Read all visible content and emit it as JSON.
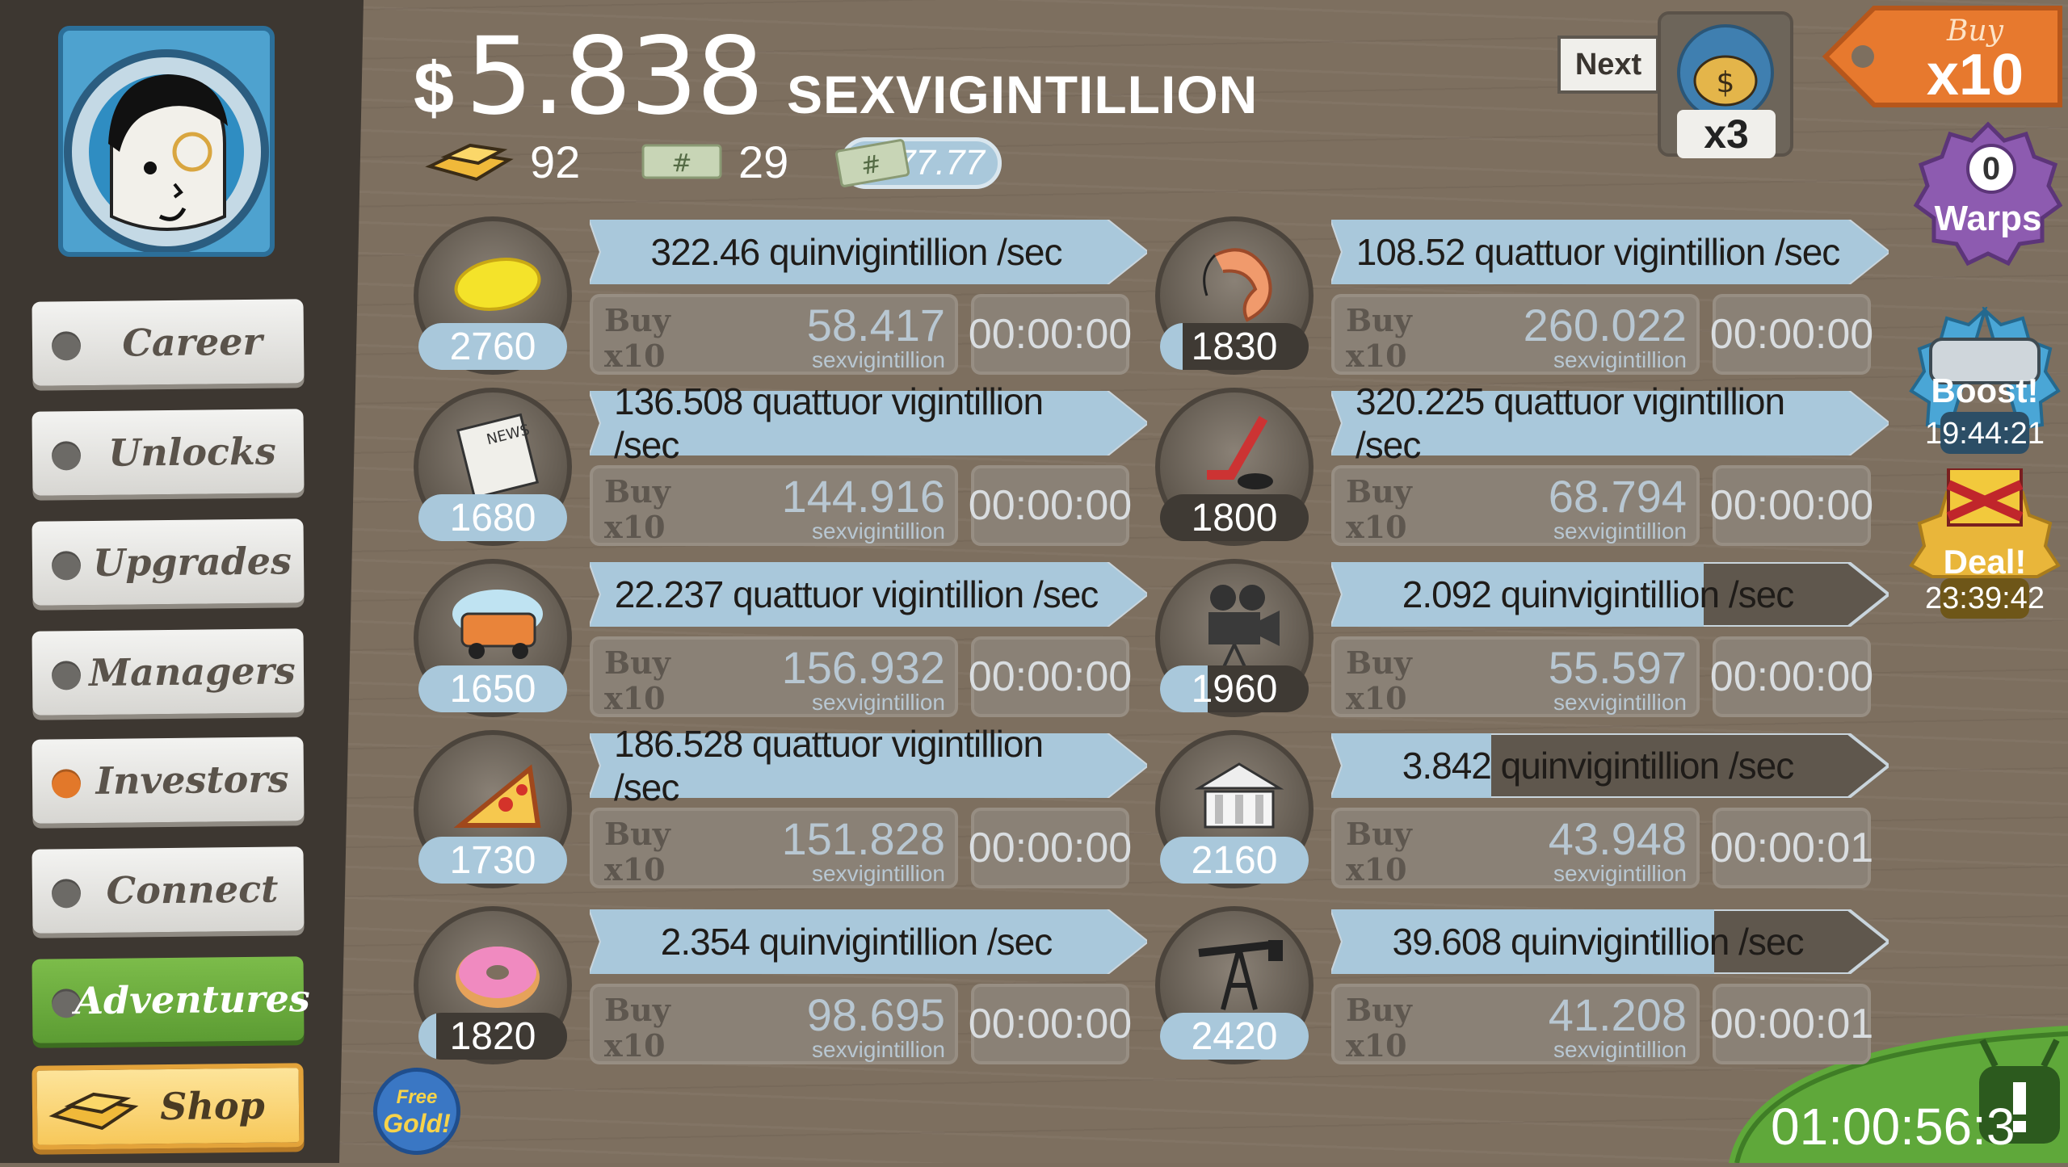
{
  "header": {
    "currency_symbol": "$",
    "amount": "5.838",
    "unit": "SEXVIGINTILLION",
    "gold_count": "92",
    "megabucks_count": "29",
    "angel_multiplier": "x77.77"
  },
  "next": {
    "label": "Next",
    "multiplier": "x3"
  },
  "buy_mode": {
    "line1": "Buy",
    "line2": "x10"
  },
  "warps": {
    "count": "0",
    "label": "Warps"
  },
  "boost": {
    "label": "Boost!",
    "timer": "19:44:21"
  },
  "deal": {
    "label": "Deal!",
    "timer": "23:39:42"
  },
  "tv_timer": "01:00:56:3",
  "free_gold": {
    "line1": "Free",
    "line2": "Gold!"
  },
  "sidebar": {
    "items": [
      {
        "label": "Career"
      },
      {
        "label": "Unlocks"
      },
      {
        "label": "Upgrades"
      },
      {
        "label": "Managers"
      },
      {
        "label": "Investors"
      },
      {
        "label": "Connect"
      },
      {
        "label": "Adventures"
      },
      {
        "label": "Shop"
      }
    ]
  },
  "buy_labels": {
    "line1": "Buy",
    "line2": "x10"
  },
  "businesses": [
    {
      "icon": "lemon-icon",
      "owned": "2760",
      "progress": 1.0,
      "revenue": "322.46 quinvigintillion /sec",
      "cost": "58.417",
      "cost_unit": "sexvigintillion",
      "timer": "00:00:00"
    },
    {
      "icon": "shrimp-icon",
      "owned": "1830",
      "progress": 0.15,
      "revenue": "108.52 quattuor vigintillion /sec",
      "cost": "260.022",
      "cost_unit": "sexvigintillion",
      "timer": "00:00:00"
    },
    {
      "icon": "newspaper-icon",
      "owned": "1680",
      "progress": 1.0,
      "revenue": "136.508 quattuor vigintillion /sec",
      "cost": "144.916",
      "cost_unit": "sexvigintillion",
      "timer": "00:00:00"
    },
    {
      "icon": "hockey-icon",
      "owned": "1800",
      "progress": 0.0,
      "revenue": "320.225 quattuor vigintillion /sec",
      "cost": "68.794",
      "cost_unit": "sexvigintillion",
      "timer": "00:00:00"
    },
    {
      "icon": "car-icon",
      "owned": "1650",
      "progress": 1.0,
      "revenue": "22.237 quattuor vigintillion /sec",
      "cost": "156.932",
      "cost_unit": "sexvigintillion",
      "timer": "00:00:00"
    },
    {
      "icon": "movie-camera-icon",
      "owned": "1960",
      "progress": 0.32,
      "revenue": "2.092 quinvigintillion /sec",
      "cost": "55.597",
      "cost_unit": "sexvigintillion",
      "timer": "00:00:00",
      "rev_fill": 0.72
    },
    {
      "icon": "pizza-icon",
      "owned": "1730",
      "progress": 1.0,
      "revenue": "186.528 quattuor vigintillion /sec",
      "cost": "151.828",
      "cost_unit": "sexvigintillion",
      "timer": "00:00:00"
    },
    {
      "icon": "bank-icon",
      "owned": "2160",
      "progress": 1.0,
      "revenue": "3.842 quinvigintillion /sec",
      "cost": "43.948",
      "cost_unit": "sexvigintillion",
      "timer": "00:00:01",
      "rev_fill": 0.31
    },
    {
      "icon": "donut-icon",
      "owned": "1820",
      "progress": 0.12,
      "revenue": "2.354 quinvigintillion /sec",
      "cost": "98.695",
      "cost_unit": "sexvigintillion",
      "timer": "00:00:00"
    },
    {
      "icon": "oil-rig-icon",
      "owned": "2420",
      "progress": 1.0,
      "revenue": "39.608 quinvigintillion /sec",
      "cost": "41.208",
      "cost_unit": "sexvigintillion",
      "timer": "00:00:01",
      "rev_fill": 0.74
    }
  ]
}
